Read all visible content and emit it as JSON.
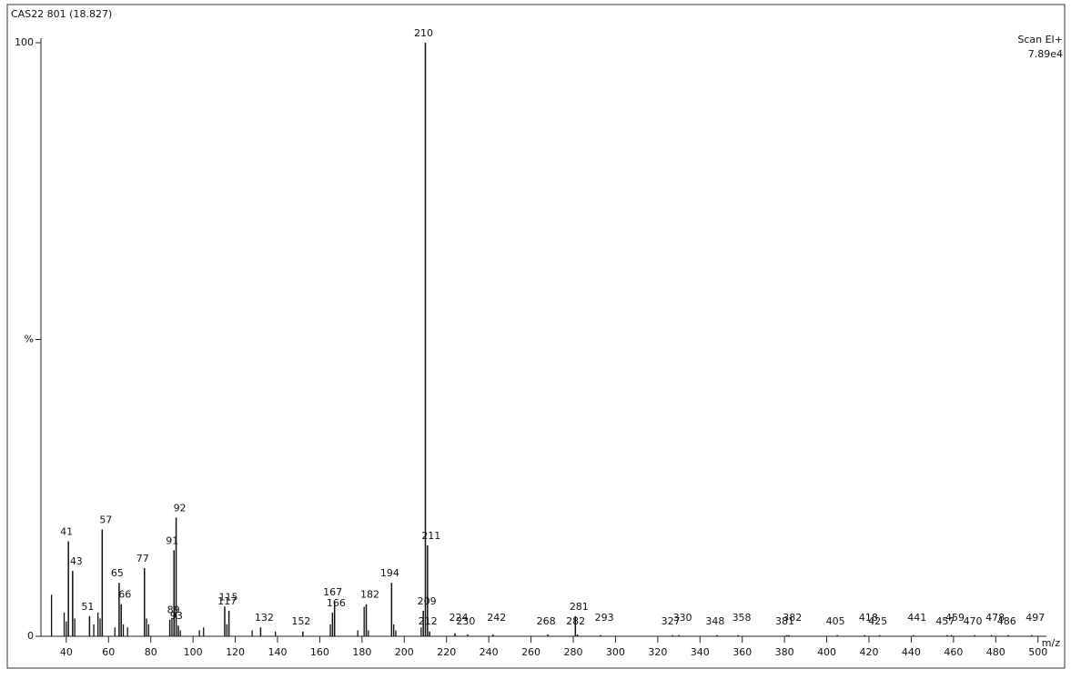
{
  "chart_data": {
    "type": "spectrum",
    "title": "CAS22 801 (18.827)",
    "scan_mode": "Scan EI+",
    "intensity": "7.89e4",
    "x_label": "m/z",
    "color": "#111111",
    "x": [
      41,
      43,
      51,
      57,
      65,
      66,
      77,
      89,
      91,
      92,
      93,
      115,
      117,
      132,
      152,
      166,
      167,
      182,
      194,
      209,
      210,
      211,
      212,
      224,
      230,
      242,
      268,
      281,
      282,
      293,
      327,
      330,
      348,
      358,
      381,
      382,
      405,
      418,
      425,
      441,
      457,
      459,
      470,
      478,
      486,
      497
    ],
    "values": [
      16,
      11,
      3.4,
      18,
      9,
      5.4,
      11.5,
      2.8,
      14.5,
      20,
      1.8,
      5,
      4.3,
      1.5,
      0.8,
      4,
      5.8,
      5.4,
      9,
      4.3,
      100,
      15.3,
      0.8,
      0.5,
      0.3,
      0.3,
      0.3,
      3.4,
      0.3,
      0.2,
      0.2,
      0.2,
      0.2,
      0.2,
      0.2,
      0.2,
      0.2,
      0.2,
      0.2,
      0.2,
      0.2,
      0.2,
      0.2,
      0.2,
      0.2,
      0.2
    ],
    "minor_x": [
      33,
      39,
      40,
      44,
      53,
      55,
      56,
      63,
      67,
      69,
      78,
      79,
      90,
      94,
      103,
      105,
      116,
      128,
      139,
      165,
      178,
      181,
      183,
      195,
      196,
      208
    ],
    "minor_values": [
      7,
      4,
      2.5,
      3,
      2,
      4,
      3,
      1.5,
      2,
      1.5,
      3,
      2,
      3,
      1,
      1,
      1.5,
      2,
      1,
      0.8,
      2,
      1,
      5,
      1,
      2,
      1,
      1.5
    ],
    "xlim": [
      28,
      504
    ],
    "ylim": [
      0,
      100
    ],
    "xticks": [
      40,
      60,
      80,
      100,
      120,
      140,
      160,
      180,
      200,
      220,
      240,
      260,
      280,
      300,
      320,
      340,
      360,
      380,
      400,
      420,
      440,
      460,
      480,
      500
    ],
    "yticks": [
      0,
      {
        "value": 50,
        "label": "%"
      },
      100
    ]
  }
}
